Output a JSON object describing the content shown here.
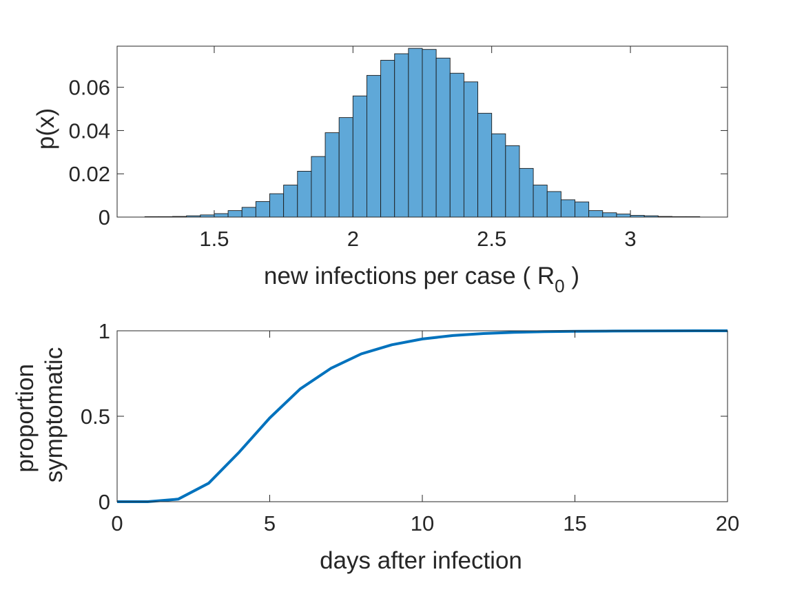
{
  "chart_data": [
    {
      "type": "bar",
      "subtype": "histogram",
      "xlabel": "new infections per case (",
      "xlabel_symbol": "R",
      "xlabel_subscript": "0",
      "xlabel_suffix": ")",
      "ylabel": "p(x)",
      "xlim": [
        1.15,
        3.35
      ],
      "ylim": [
        0,
        0.079
      ],
      "xticks": [
        1.5,
        2,
        2.5,
        3
      ],
      "xtick_labels": [
        "1.5",
        "2",
        "2.5",
        "3"
      ],
      "yticks": [
        0,
        0.02,
        0.04,
        0.06
      ],
      "ytick_labels": [
        "0",
        "0.02",
        "0.04",
        "0.06"
      ],
      "bin_width": 0.05,
      "bin_start": 1.25,
      "values": [
        0.0002,
        0.0002,
        0.0003,
        0.0006,
        0.001,
        0.0016,
        0.003,
        0.0045,
        0.0072,
        0.0108,
        0.0148,
        0.0212,
        0.028,
        0.039,
        0.046,
        0.056,
        0.0655,
        0.0725,
        0.0755,
        0.078,
        0.0775,
        0.0735,
        0.0665,
        0.0625,
        0.048,
        0.0385,
        0.033,
        0.0225,
        0.0148,
        0.0118,
        0.008,
        0.007,
        0.003,
        0.002,
        0.0014,
        0.0008,
        0.0006,
        0.0003,
        0.0002,
        0.0002
      ],
      "bar_color": "#5fa8d8",
      "edge_color": "#1a1a1a",
      "grid": false,
      "box": true
    },
    {
      "type": "line",
      "xlabel": "days after infection",
      "ylabel": [
        "proportion",
        "symptomatic"
      ],
      "xlim": [
        0,
        20
      ],
      "ylim": [
        0,
        1
      ],
      "xticks": [
        0,
        5,
        10,
        15,
        20
      ],
      "xtick_labels": [
        "0",
        "5",
        "10",
        "15",
        "20"
      ],
      "yticks": [
        0,
        0.5,
        1
      ],
      "ytick_labels": [
        "0",
        "0.5",
        "1"
      ],
      "x": [
        0,
        1,
        2,
        3,
        4,
        5,
        6,
        7,
        8,
        9,
        10,
        11,
        12,
        13,
        14,
        15,
        16,
        17,
        18,
        19,
        20
      ],
      "y": [
        0,
        0,
        0.015,
        0.108,
        0.29,
        0.49,
        0.66,
        0.78,
        0.865,
        0.918,
        0.952,
        0.972,
        0.984,
        0.991,
        0.995,
        0.997,
        0.998,
        0.999,
        0.9995,
        0.9998,
        1.0
      ],
      "line_color": "#0072bd",
      "grid": false,
      "box": true
    }
  ]
}
